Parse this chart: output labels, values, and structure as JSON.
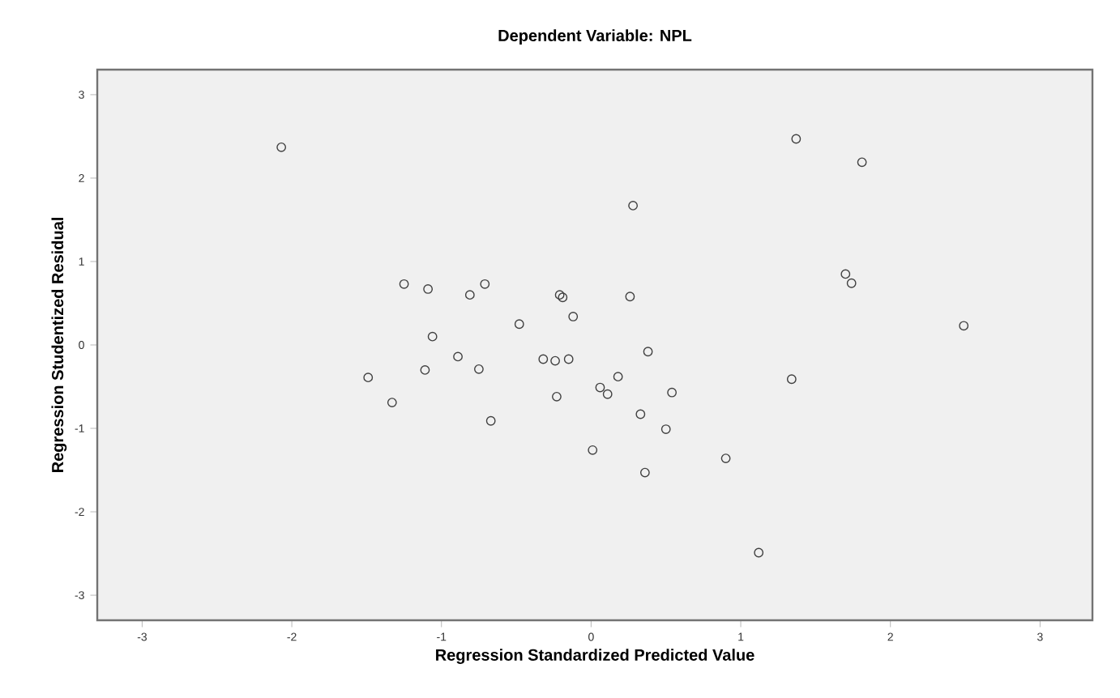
{
  "chart_data": {
    "type": "scatter",
    "title": "Dependent Variable: NPL",
    "xlabel": "Regression Standardized Predicted Value",
    "ylabel": "Regression Studentized Residual",
    "x": [
      -2.07,
      -1.25,
      -1.09,
      -0.81,
      -0.71,
      -0.21,
      -0.19,
      -0.12,
      -0.48,
      -1.06,
      -0.89,
      -1.11,
      -0.75,
      -1.49,
      -1.33,
      -0.67,
      -0.32,
      -0.24,
      -0.15,
      -0.23,
      0.01,
      0.06,
      0.11,
      1.37,
      1.81,
      0.28,
      1.7,
      1.74,
      2.49,
      0.26,
      0.38,
      0.18,
      0.54,
      0.33,
      0.5,
      0.36,
      0.9,
      1.34,
      1.12
    ],
    "values": [
      2.37,
      0.73,
      0.67,
      0.6,
      0.73,
      0.6,
      0.57,
      0.34,
      0.25,
      0.1,
      -0.14,
      -0.3,
      -0.29,
      -0.39,
      -0.69,
      -0.91,
      -0.17,
      -0.19,
      -0.17,
      -0.62,
      -1.26,
      -0.51,
      -0.59,
      2.47,
      2.19,
      1.67,
      0.85,
      0.74,
      0.23,
      0.58,
      -0.08,
      -0.38,
      -0.57,
      -0.83,
      -1.01,
      -1.53,
      -1.36,
      -0.41,
      -2.49
    ],
    "color": "#404040",
    "marker": "circle",
    "grid": false,
    "xlim": [
      -3.3,
      3.35
    ],
    "ylim": [
      -3.3,
      3.3
    ],
    "xticks": [
      -3,
      -2,
      -1,
      0,
      1,
      2,
      3
    ],
    "yticks": [
      -3,
      -2,
      -1,
      0,
      1,
      2,
      3
    ]
  }
}
